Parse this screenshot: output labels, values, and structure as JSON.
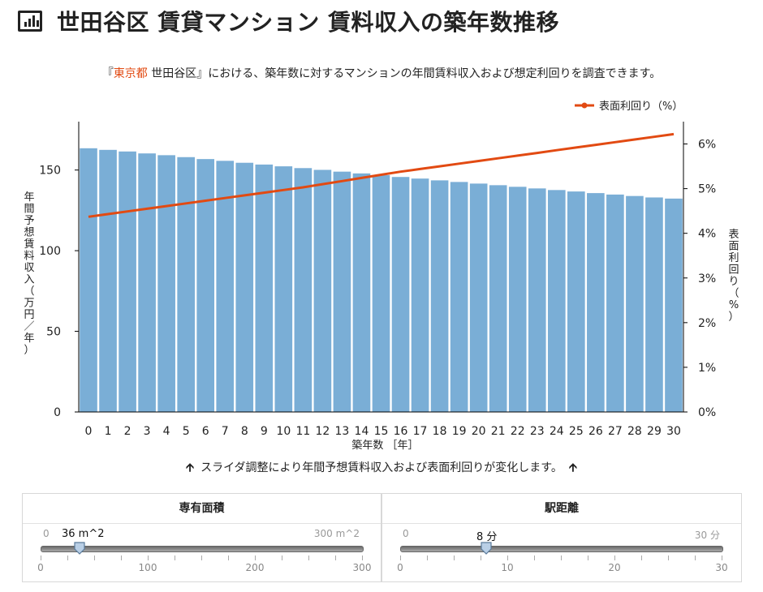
{
  "title": "世田谷区 賃貸マンション 賃料収入の築年数推移",
  "title_icon": "bar-chart-icon",
  "description": {
    "prefix": "『",
    "accent": "東京都",
    "rest": " 世田谷区』における、築年数に対するマンションの年間賃料収入および想定利回りを調査できます。"
  },
  "colors": {
    "bar": "#7aaed6",
    "line": "#e24a12",
    "accent": "#e24a12"
  },
  "chart_data": {
    "type": "bar",
    "categories": [
      "0",
      "1",
      "2",
      "3",
      "4",
      "5",
      "6",
      "7",
      "8",
      "9",
      "10",
      "11",
      "12",
      "13",
      "14",
      "15",
      "16",
      "17",
      "18",
      "19",
      "20",
      "21",
      "22",
      "23",
      "24",
      "25",
      "26",
      "27",
      "28",
      "29",
      "30"
    ],
    "series": [
      {
        "type": "bar",
        "axis": "left",
        "values": [
          163.5,
          162.5,
          161.5,
          160.3,
          159.2,
          158.0,
          156.8,
          155.7,
          154.5,
          153.4,
          152.3,
          151.2,
          150.1,
          149.0,
          147.9,
          146.8,
          145.7,
          144.7,
          143.6,
          142.6,
          141.6,
          140.6,
          139.6,
          138.6,
          137.6,
          136.7,
          135.7,
          134.8,
          133.9,
          133.0,
          132.3
        ]
      },
      {
        "type": "line",
        "axis": "right",
        "name": "表面利回り（%）",
        "values": [
          4.37,
          4.43,
          4.49,
          4.55,
          4.61,
          4.67,
          4.73,
          4.79,
          4.85,
          4.91,
          4.97,
          5.03,
          5.1,
          5.17,
          5.24,
          5.31,
          5.38,
          5.44,
          5.5,
          5.56,
          5.62,
          5.68,
          5.74,
          5.8,
          5.86,
          5.92,
          5.98,
          6.04,
          6.1,
          6.16,
          6.22
        ]
      }
    ],
    "xlabel": "築年数 ［年］",
    "ylabel": "年間予想賃料収入（万円／年）",
    "y2label": "表面利回り（%）",
    "ylim": [
      0,
      180
    ],
    "yticks": [
      "0",
      "50",
      "100",
      "150"
    ],
    "y2lim": [
      0,
      6.5
    ],
    "y2ticks": [
      "0%",
      "1%",
      "2%",
      "3%",
      "4%",
      "5%",
      "6%"
    ],
    "legend": "top-right",
    "grid": false
  },
  "hint": "スライダ調整により年間予想賃料収入および表面利回りが変化します。",
  "hint_icon": "arrow-up-icon",
  "sliders": [
    {
      "title": "専有面積",
      "min_label": "0",
      "max_label": "300 m^2",
      "value_label": "36 m^2",
      "value": 36,
      "min": 0,
      "max": 300,
      "ticks": [
        "0",
        "100",
        "200",
        "300"
      ]
    },
    {
      "title": "駅距離",
      "min_label": "0",
      "max_label": "30 分",
      "value_label": "8 分",
      "value": 8,
      "min": 0,
      "max": 30,
      "ticks": [
        "0",
        "10",
        "20",
        "30"
      ]
    }
  ]
}
